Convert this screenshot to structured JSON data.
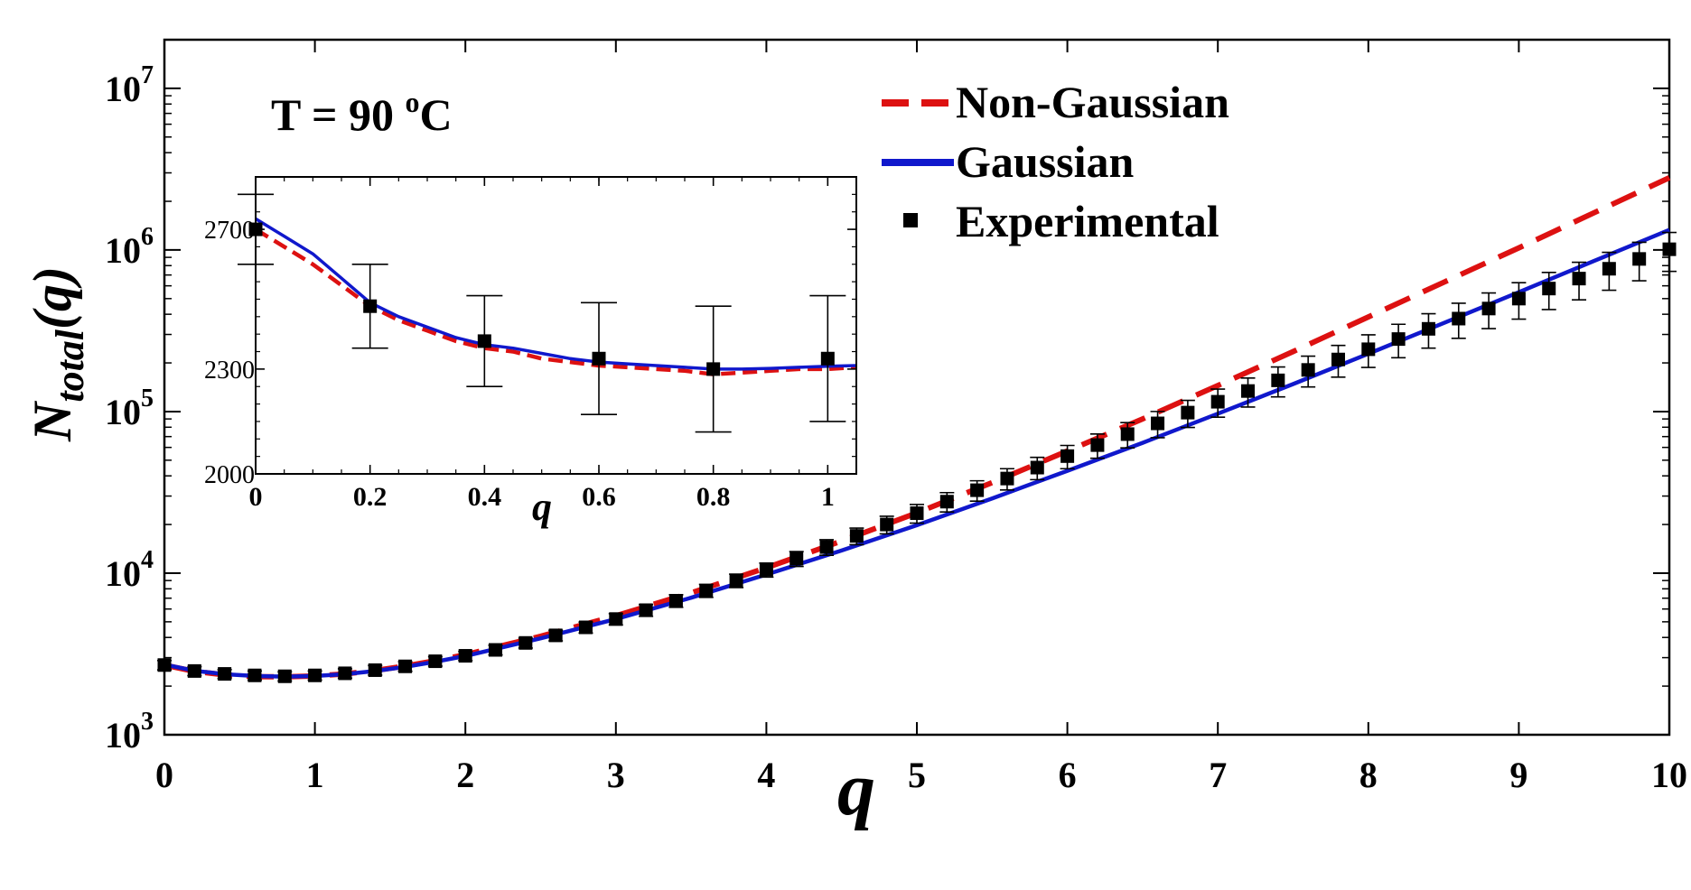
{
  "chart_data": [
    {
      "type": "line",
      "role": "main",
      "xlabel": "q",
      "ylabel_main": "N",
      "ylabel_sub": "total",
      "ylabel_arg": "(q)",
      "annotation": {
        "prefix": "T = 90 ",
        "sup": "o",
        "suffix": "C"
      },
      "xlim": [
        0,
        10
      ],
      "ylim": [
        1000,
        20000000
      ],
      "yscale": "log",
      "x_ticks": [
        0,
        1,
        2,
        3,
        4,
        5,
        6,
        7,
        8,
        9,
        10
      ],
      "x_tick_labels": [
        "0",
        "1",
        "2",
        "3",
        "4",
        "5",
        "6",
        "7",
        "8",
        "9",
        "10"
      ],
      "y_ticks": [
        1000,
        10000,
        100000,
        1000000,
        10000000
      ],
      "y_tick_labels": [
        {
          "base": "10",
          "exp": "3"
        },
        {
          "base": "10",
          "exp": "4"
        },
        {
          "base": "10",
          "exp": "5"
        },
        {
          "base": "10",
          "exp": "6"
        },
        {
          "base": "10",
          "exp": "7"
        }
      ],
      "legend_position": "top-right",
      "series": [
        {
          "name": "Non-Gaussian",
          "style": "dashed",
          "color": "#dd1111",
          "x": [
            0,
            0.2,
            0.4,
            0.6,
            0.8,
            1.0,
            1.2,
            1.4,
            1.6,
            1.8,
            2.0,
            2.5,
            3.0,
            3.5,
            4.0,
            4.5,
            5.0,
            5.5,
            6.0,
            6.5,
            7.0,
            7.5,
            8.0,
            8.5,
            9.0,
            9.5,
            10.0
          ],
          "y": [
            2700,
            2470,
            2350,
            2290,
            2280,
            2310,
            2380,
            2500,
            2660,
            2870,
            3130,
            4070,
            5450,
            7550,
            10800,
            15800,
            23600,
            36300,
            57000,
            90000,
            145000,
            235000,
            385000,
            630000,
            1030000,
            1700000,
            2800000
          ]
        },
        {
          "name": "Gaussian",
          "style": "solid",
          "color": "#1018cc",
          "x": [
            0,
            0.2,
            0.4,
            0.6,
            0.8,
            1.0,
            1.2,
            1.4,
            1.6,
            1.8,
            2.0,
            2.5,
            3.0,
            3.5,
            4.0,
            4.5,
            5.0,
            5.5,
            6.0,
            6.5,
            7.0,
            7.5,
            8.0,
            8.5,
            9.0,
            9.5,
            10.0
          ],
          "y": [
            2720,
            2490,
            2370,
            2310,
            2290,
            2310,
            2370,
            2480,
            2630,
            2830,
            3070,
            3950,
            5200,
            7050,
            9800,
            13800,
            19800,
            29000,
            43000,
            64000,
            97000,
            148000,
            228000,
            353000,
            548000,
            855000,
            1330000
          ]
        },
        {
          "name": "Experimental",
          "style": "markers",
          "color": "#000000",
          "x": [
            0,
            0.2,
            0.4,
            0.6,
            0.8,
            1.0,
            1.2,
            1.4,
            1.6,
            1.8,
            2.0,
            2.2,
            2.4,
            2.6,
            2.8,
            3.0,
            3.2,
            3.4,
            3.6,
            3.8,
            4.0,
            4.2,
            4.4,
            4.6,
            4.8,
            5.0,
            5.2,
            5.4,
            5.6,
            5.8,
            6.0,
            6.2,
            6.4,
            6.6,
            6.8,
            7.0,
            7.2,
            7.4,
            7.6,
            7.8,
            8.0,
            8.2,
            8.4,
            8.6,
            8.8,
            9.0,
            9.2,
            9.4,
            9.6,
            9.8,
            10.0
          ],
          "y": [
            2700,
            2480,
            2380,
            2330,
            2300,
            2330,
            2400,
            2510,
            2650,
            2850,
            3080,
            3350,
            3700,
            4120,
            4620,
            5200,
            5900,
            6750,
            7800,
            9000,
            10500,
            12300,
            14500,
            17000,
            20000,
            23500,
            27700,
            32600,
            38500,
            45000,
            53000,
            62000,
            72500,
            84500,
            98500,
            115000,
            134000,
            156000,
            181000,
            210000,
            243000,
            281000,
            325000,
            376000,
            434000,
            500000,
            577000,
            665000,
            765000,
            880000,
            1010000
          ],
          "err": [
            180,
            160,
            150,
            150,
            150,
            150,
            160,
            170,
            180,
            190,
            200,
            230,
            260,
            310,
            360,
            420,
            500,
            600,
            720,
            860,
            1050,
            1300,
            1600,
            2000,
            2500,
            3100,
            3800,
            4700,
            5800,
            7100,
            8700,
            10600,
            12900,
            15600,
            18800,
            22700,
            27300,
            32700,
            39100,
            46600,
            55500,
            65800,
            78000,
            92000,
            108000,
            127000,
            149000,
            174000,
            202000,
            235000,
            273000
          ]
        }
      ]
    },
    {
      "type": "line",
      "role": "inset",
      "xlabel": "q",
      "ylabel": "",
      "xlim": [
        0,
        1.05
      ],
      "ylim": [
        2000,
        2850
      ],
      "yscale": "linear",
      "x_ticks": [
        0,
        0.2,
        0.4,
        0.6,
        0.8,
        1.0
      ],
      "x_tick_labels": [
        "0",
        "0.2",
        "0.4",
        "0.6",
        "0.8",
        "1"
      ],
      "y_ticks": [
        2000,
        2300,
        2700
      ],
      "y_tick_labels": [
        "2000",
        "2300",
        "2700"
      ],
      "series": [
        {
          "name": "Non-Gaussian",
          "style": "dashed",
          "color": "#dd1111",
          "x": [
            0,
            0.05,
            0.1,
            0.15,
            0.2,
            0.25,
            0.3,
            0.35,
            0.4,
            0.45,
            0.5,
            0.55,
            0.6,
            0.65,
            0.7,
            0.75,
            0.8,
            0.85,
            0.9,
            0.95,
            1.0,
            1.05
          ],
          "y": [
            2700,
            2650,
            2600,
            2540,
            2480,
            2440,
            2410,
            2380,
            2360,
            2350,
            2330,
            2320,
            2310,
            2305,
            2300,
            2295,
            2285,
            2290,
            2295,
            2300,
            2300,
            2305
          ]
        },
        {
          "name": "Gaussian",
          "style": "solid",
          "color": "#1018cc",
          "x": [
            0,
            0.05,
            0.1,
            0.15,
            0.2,
            0.25,
            0.3,
            0.35,
            0.4,
            0.45,
            0.5,
            0.55,
            0.6,
            0.65,
            0.7,
            0.75,
            0.8,
            0.85,
            0.9,
            0.95,
            1.0,
            1.05
          ],
          "y": [
            2730,
            2680,
            2630,
            2560,
            2490,
            2450,
            2420,
            2390,
            2370,
            2360,
            2345,
            2330,
            2320,
            2315,
            2310,
            2305,
            2300,
            2300,
            2302,
            2305,
            2308,
            2310
          ]
        },
        {
          "name": "Experimental",
          "style": "markers",
          "color": "#000000",
          "x": [
            0,
            0.2,
            0.4,
            0.6,
            0.8,
            1.0
          ],
          "y": [
            2700,
            2480,
            2380,
            2330,
            2300,
            2330
          ],
          "err": [
            100,
            120,
            130,
            160,
            180,
            180
          ]
        }
      ]
    }
  ]
}
